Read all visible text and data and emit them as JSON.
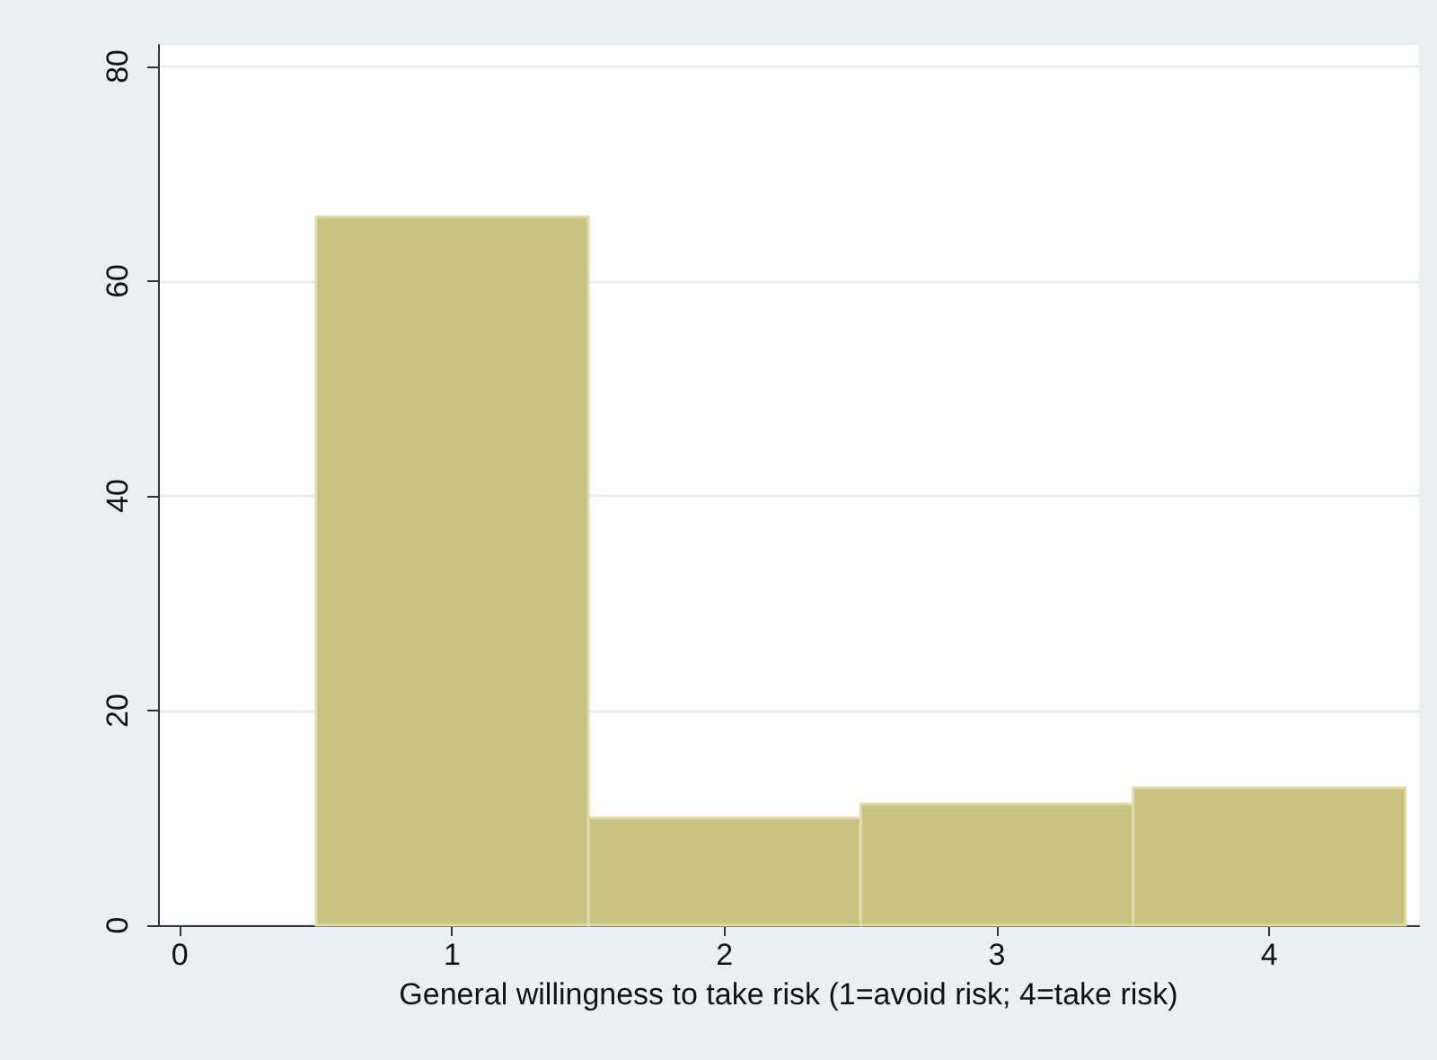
{
  "chart_data": {
    "type": "histogram",
    "xlabel": "General willingness to take risk (1=avoid risk; 4=take risk)",
    "bins": [
      0.5,
      1.5,
      2.5,
      3.5,
      4.5
    ],
    "values": [
      66,
      10,
      11.3,
      12.8
    ],
    "color": "#c9c280",
    "xlim": [
      -0.08,
      4.55
    ],
    "xticks": [
      0,
      1,
      2,
      3,
      4
    ],
    "ylim": [
      0,
      82
    ],
    "yticks": [
      0,
      20,
      40,
      60,
      80
    ],
    "grid": "y"
  }
}
